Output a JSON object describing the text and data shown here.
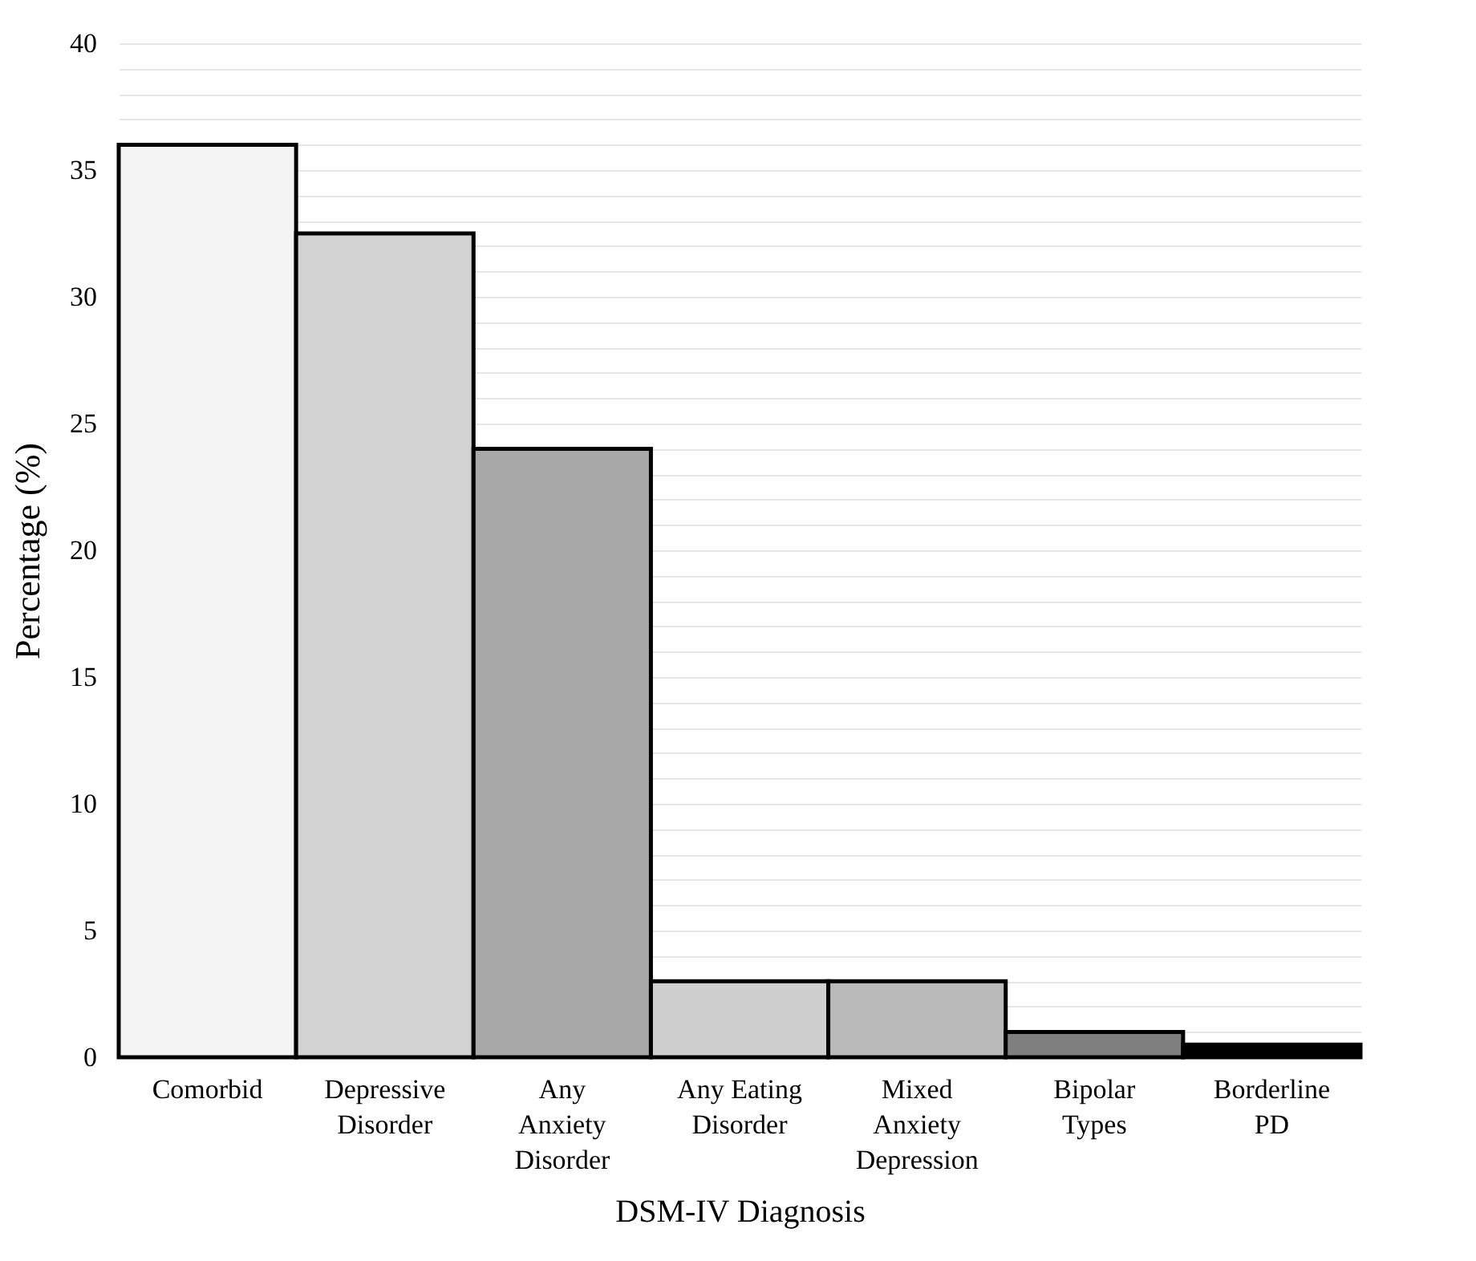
{
  "chart_data": {
    "type": "bar",
    "xlabel": "DSM-IV Diagnosis",
    "ylabel": "Percentage (%)",
    "categories": [
      "Comorbid",
      "Depressive\nDisorder",
      "Any\nAnxiety\nDisorder",
      "Any Eating\nDisorder",
      "Mixed\nAnxiety\nDepression",
      "Bipolar\nTypes",
      "Borderline\nPD"
    ],
    "values": [
      36,
      32.5,
      24,
      3,
      3,
      1,
      0.5
    ],
    "colors": [
      "#f3f4f3",
      "#d2d2d2",
      "#a8a8a8",
      "#cfcfcf",
      "#bababa",
      "#7f7f7f",
      "#000000"
    ],
    "ylim": [
      0,
      40
    ],
    "yticks": [
      0,
      {
        "value": 1,
        "label": null
      },
      {
        "value": 2,
        "label": null
      },
      {
        "value": 3,
        "label": null
      },
      {
        "value": 4,
        "label": null
      },
      5,
      {
        "value": 6,
        "label": null
      },
      {
        "value": 7,
        "label": null
      },
      {
        "value": 8,
        "label": null
      },
      {
        "value": 9,
        "label": null
      },
      10,
      {
        "value": 11,
        "label": null
      },
      {
        "value": 12,
        "label": null
      },
      {
        "value": 13,
        "label": null
      },
      {
        "value": 14,
        "label": null
      },
      15,
      {
        "value": 16,
        "label": null
      },
      {
        "value": 17,
        "label": null
      },
      {
        "value": 18,
        "label": null
      },
      {
        "value": 19,
        "label": null
      },
      20,
      {
        "value": 21,
        "label": null
      },
      {
        "value": 22,
        "label": null
      },
      {
        "value": 23,
        "label": null
      },
      {
        "value": 24,
        "label": null
      },
      25,
      {
        "value": 26,
        "label": null
      },
      {
        "value": 27,
        "label": null
      },
      {
        "value": 28,
        "label": null
      },
      {
        "value": 29,
        "label": null
      },
      30,
      {
        "value": 31,
        "label": null
      },
      {
        "value": 32,
        "label": null
      },
      {
        "value": 33,
        "label": null
      },
      {
        "value": 34,
        "label": null
      },
      35,
      {
        "value": 36,
        "label": null
      },
      {
        "value": 37,
        "label": null
      },
      {
        "value": 38,
        "label": null
      },
      {
        "value": 39,
        "label": null
      },
      40
    ],
    "grid": "y",
    "legend": false
  }
}
